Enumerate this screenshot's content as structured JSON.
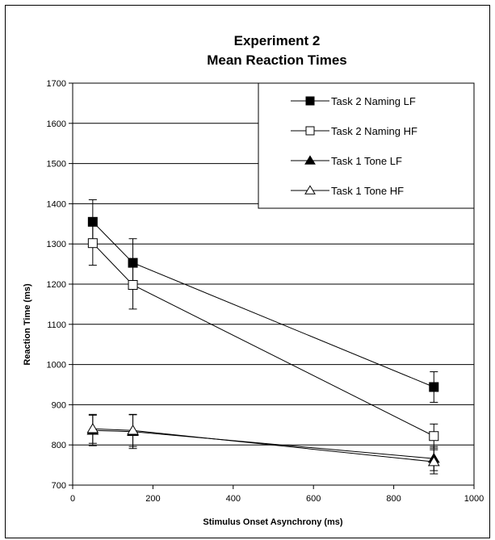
{
  "chart_data": {
    "type": "line",
    "title_line1": "Experiment 2",
    "title_line2": "Mean Reaction Times",
    "xlabel": "Stimulus Onset Asynchrony (ms)",
    "ylabel": "Reaction Time (ms)",
    "xlim": [
      0,
      1000
    ],
    "ylim": [
      700,
      1700
    ],
    "x_ticks": [
      "0",
      "200",
      "400",
      "600",
      "800",
      "1000"
    ],
    "y_ticks": [
      "700",
      "800",
      "900",
      "1000",
      "1100",
      "1200",
      "1300",
      "1400",
      "1500",
      "1600",
      "1700"
    ],
    "grid": "horizontal",
    "legend_position": "top-right",
    "series": [
      {
        "name": "Task 2 Naming LF",
        "marker": "square-filled",
        "points": [
          {
            "x": 50,
            "y": 1355,
            "err": 55
          },
          {
            "x": 150,
            "y": 1253,
            "err": 60
          },
          {
            "x": 900,
            "y": 944,
            "err": 38
          }
        ]
      },
      {
        "name": "Task 2 Naming HF",
        "marker": "square-open",
        "points": [
          {
            "x": 50,
            "y": 1302,
            "err": 55
          },
          {
            "x": 150,
            "y": 1198,
            "err": 60
          },
          {
            "x": 900,
            "y": 822,
            "err": 30
          }
        ]
      },
      {
        "name": "Task 1 Tone LF",
        "marker": "triangle-filled",
        "points": [
          {
            "x": 50,
            "y": 836,
            "err": 38
          },
          {
            "x": 150,
            "y": 833,
            "err": 42
          },
          {
            "x": 900,
            "y": 766,
            "err": 30
          }
        ]
      },
      {
        "name": "Task 1 Tone HF",
        "marker": "triangle-open",
        "points": [
          {
            "x": 50,
            "y": 840,
            "err": 36
          },
          {
            "x": 150,
            "y": 836,
            "err": 40
          },
          {
            "x": 900,
            "y": 758,
            "err": 30
          }
        ]
      }
    ]
  }
}
